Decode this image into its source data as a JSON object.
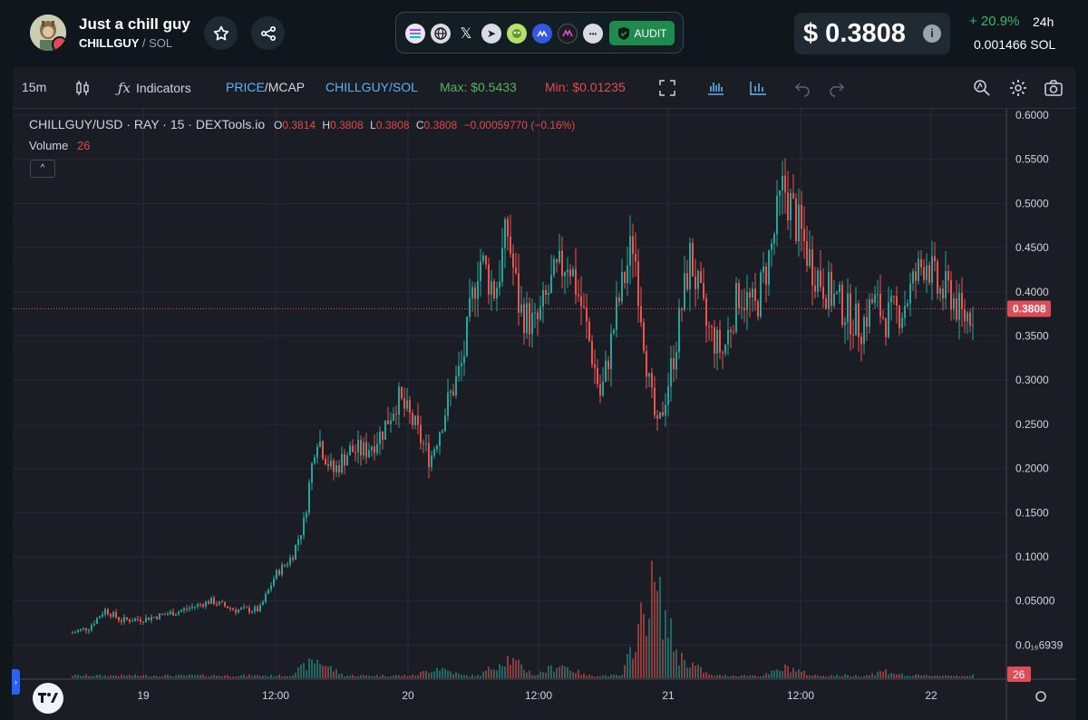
{
  "header": {
    "token_name": "Just a chill guy",
    "token_ticker": "CHILLGUY",
    "chain_separator": "/",
    "chain": "SOL",
    "price": "$ 0.3808",
    "info_label": "i",
    "change_pct": "+ 20.9%",
    "change_period": "24h",
    "sol_price": "0.001466  SOL",
    "audit_label": "AUDIT",
    "social_icons": [
      "solana-icon",
      "globe-icon",
      "x-icon",
      "telegram-icon",
      "pepe-icon",
      "coinmarketcap-icon",
      "moralis-icon",
      "more-icon"
    ],
    "more_label": "•••",
    "x_label": "𝕏",
    "tg_label": "➤"
  },
  "toolbar": {
    "interval": "15m",
    "indicators": "Indicators",
    "price_label": "PRICE",
    "slash": "/",
    "mcap_label": "MCAP",
    "pair_label": "CHILLGUY/SOL",
    "max_label": "Max: $0.5433",
    "min_label": "Min: $0.01235"
  },
  "legend": {
    "symbol": "CHILLGUY/USD · RAY · 15 · DEXTools.io",
    "o_key": "O",
    "o_val": "0.3814",
    "h_key": "H",
    "h_val": "0.3808",
    "l_key": "L",
    "l_val": "0.3808",
    "c_key": "C",
    "c_val": "0.3808",
    "change": "−0.00059770 (−0.16%)",
    "volume_label": "Volume",
    "volume_val": "26",
    "collapse": "^"
  },
  "colors": {
    "up": "#26a69a",
    "down": "#ef5350",
    "grid": "#262a33",
    "axis_text": "#d1d4dc",
    "price_tag": "#e04b58"
  },
  "chart_data": {
    "type": "candlestick",
    "title": "CHILLGUY/USD · RAY · 15 · DEXTools.io",
    "y_ticks": [
      "0.6000",
      "0.5500",
      "0.5000",
      "0.4500",
      "0.4000",
      "0.3500",
      "0.3000",
      "0.2500",
      "0.2000",
      "0.1500",
      "0.1000",
      "0.05000",
      "0.0₁₆6939"
    ],
    "ylim": [
      0.0,
      0.6
    ],
    "x_ticks": [
      "19",
      "12:00",
      "20",
      "12:00",
      "21",
      "12:00",
      "22"
    ],
    "current_price_label": "0.3808",
    "current_price": 0.3808,
    "volume_tag": "26",
    "price_path": [
      [
        0.0,
        0.014
      ],
      [
        0.02,
        0.02
      ],
      [
        0.04,
        0.04
      ],
      [
        0.06,
        0.028
      ],
      [
        0.09,
        0.03
      ],
      [
        0.13,
        0.038
      ],
      [
        0.17,
        0.05
      ],
      [
        0.2,
        0.04
      ],
      [
        0.23,
        0.04
      ],
      [
        0.25,
        0.08
      ],
      [
        0.27,
        0.1
      ],
      [
        0.285,
        0.14
      ],
      [
        0.3,
        0.24
      ],
      [
        0.32,
        0.195
      ],
      [
        0.34,
        0.22
      ],
      [
        0.36,
        0.22
      ],
      [
        0.38,
        0.24
      ],
      [
        0.4,
        0.28
      ],
      [
        0.42,
        0.25
      ],
      [
        0.44,
        0.21
      ],
      [
        0.46,
        0.27
      ],
      [
        0.48,
        0.32
      ],
      [
        0.5,
        0.44
      ],
      [
        0.52,
        0.4
      ],
      [
        0.535,
        0.47
      ],
      [
        0.55,
        0.38
      ],
      [
        0.57,
        0.36
      ],
      [
        0.59,
        0.41
      ],
      [
        0.61,
        0.44
      ],
      [
        0.63,
        0.37
      ],
      [
        0.65,
        0.28
      ],
      [
        0.67,
        0.38
      ],
      [
        0.69,
        0.46
      ],
      [
        0.71,
        0.29
      ],
      [
        0.72,
        0.24
      ],
      [
        0.74,
        0.33
      ],
      [
        0.76,
        0.44
      ],
      [
        0.78,
        0.36
      ],
      [
        0.8,
        0.33
      ],
      [
        0.82,
        0.4
      ],
      [
        0.84,
        0.38
      ],
      [
        0.86,
        0.45
      ],
      [
        0.875,
        0.52
      ],
      [
        0.89,
        0.48
      ],
      [
        0.91,
        0.43
      ],
      [
        0.93,
        0.4
      ],
      [
        0.95,
        0.38
      ],
      [
        0.97,
        0.36
      ],
      [
        0.985,
        0.39
      ],
      [
        1.0,
        0.37
      ],
      [
        1.02,
        0.38
      ],
      [
        1.035,
        0.41
      ],
      [
        1.05,
        0.44
      ],
      [
        1.065,
        0.4
      ],
      [
        1.08,
        0.4
      ],
      [
        1.095,
        0.37
      ],
      [
        1.11,
        0.381
      ]
    ],
    "volume_peaks": [
      [
        0.3,
        0.2
      ],
      [
        0.45,
        0.12
      ],
      [
        0.535,
        0.22
      ],
      [
        0.6,
        0.15
      ],
      [
        0.715,
        1.0
      ],
      [
        0.72,
        0.55
      ],
      [
        0.75,
        0.22
      ],
      [
        0.88,
        0.12
      ],
      [
        1.0,
        0.08
      ]
    ]
  }
}
